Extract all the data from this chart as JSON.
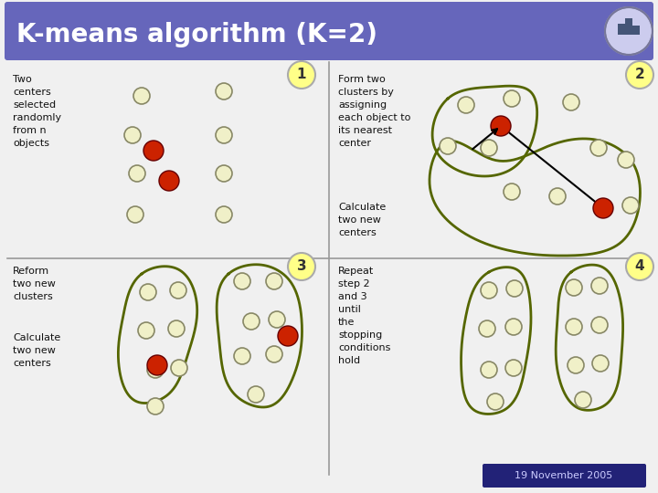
{
  "title": "K-means algorithm (K=2)",
  "title_bg_left": "#6666bb",
  "title_bg_right": "#8888cc",
  "title_text_color": "#ffffff",
  "bg_color": "#f0f0f0",
  "date_text": "19 November 2005",
  "date_bg": "#222277",
  "step_circle_color": "#ffff88",
  "step_circle_edge": "#aaaaaa",
  "cluster_edge_color": "#556600",
  "dot_fill": "#f0f0c8",
  "dot_edge": "#888866",
  "center_color": "#cc2200",
  "divider_color": "#999999",
  "panel1_label": "1",
  "panel1_text": "Two\ncenters\nselected\nrandomly\nfrom n\nobjects",
  "panel2_label": "2",
  "panel2_text1": "Form two\nclusters by\nassigning\neach object to\nits nearest\ncenter",
  "panel2_text2": "Calculate\ntwo new\ncenters",
  "panel3_label": "3",
  "panel3_text1": "Reform\ntwo new\nclusters",
  "panel3_text2": "Calculate\ntwo new\ncenters",
  "panel4_label": "4",
  "panel4_text": "Repeat\nstep 2\nand 3\nuntil\nthe\nstopping\nconditions\nhold"
}
